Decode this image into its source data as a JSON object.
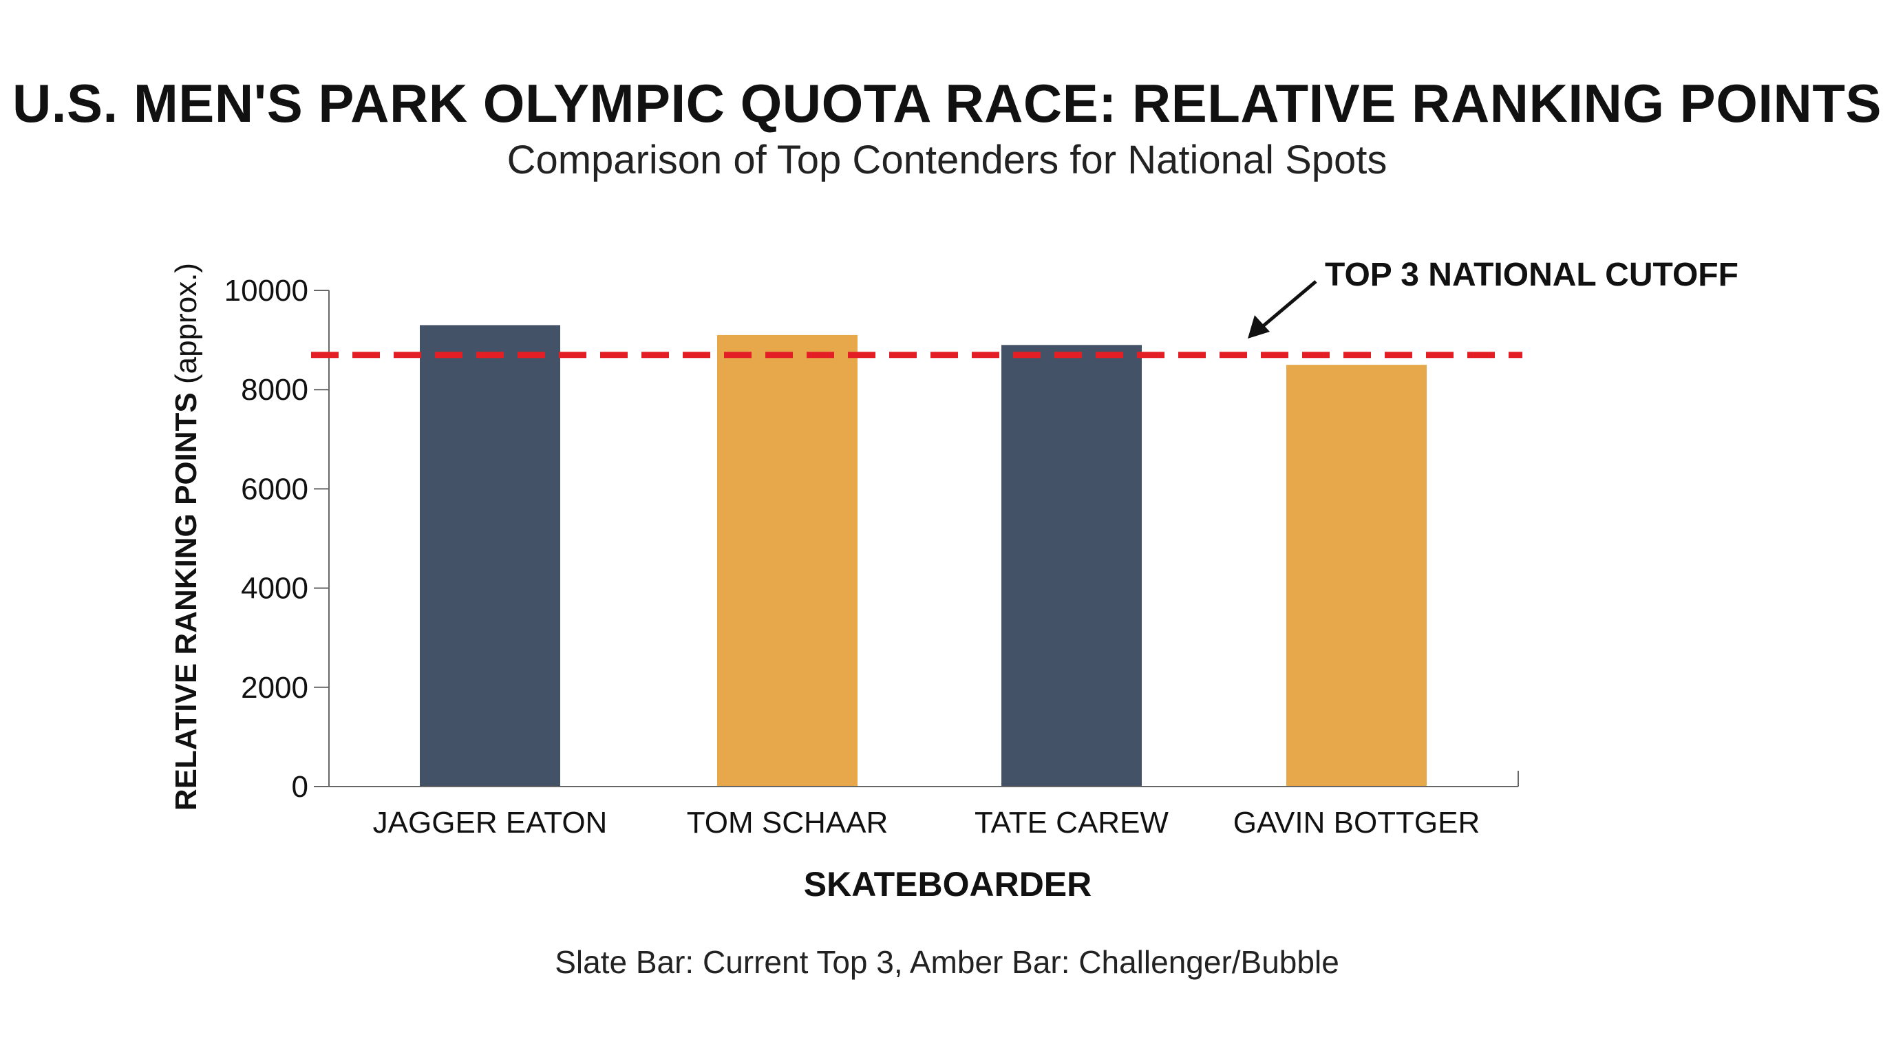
{
  "chart_data": {
    "type": "bar",
    "title": "U.S. MEN'S PARK OLYMPIC QUOTA RACE: RELATIVE RANKING POINTS",
    "subtitle": "Comparison of Top Contenders for National Spots",
    "xlabel": "SKATEBOARDER",
    "ylabel": "RELATIVE RANKING POINTS",
    "ylabel_suffix": "(approx.)",
    "categories": [
      "JAGGER EATON",
      "TOM SCHAAR",
      "TATE CAREW",
      "GAVIN BOTTGER"
    ],
    "values": [
      9300,
      9100,
      8900,
      8500
    ],
    "bar_groups": [
      "Current Top 3",
      "Challenger/Bubble",
      "Current Top 3",
      "Challenger/Bubble"
    ],
    "ylim": [
      0,
      10000
    ],
    "yticks": [
      0,
      2000,
      4000,
      6000,
      8000,
      10000
    ],
    "yticklabels": [
      "0",
      "2000",
      "4000",
      "6000",
      "8000",
      "10000"
    ],
    "grid": false,
    "reference_line": {
      "value": 8700,
      "label": "TOP 3 NATIONAL CUTOFF",
      "color": "#e31e24",
      "style": "dashed"
    },
    "caption": "Slate Bar: Current Top 3, Amber Bar: Challenger/Bubble"
  },
  "colors": {
    "slate": "#435267",
    "amber": "#e6a84a",
    "cutoff": "#e31e24",
    "axis": "#666666",
    "text": "#111111"
  }
}
